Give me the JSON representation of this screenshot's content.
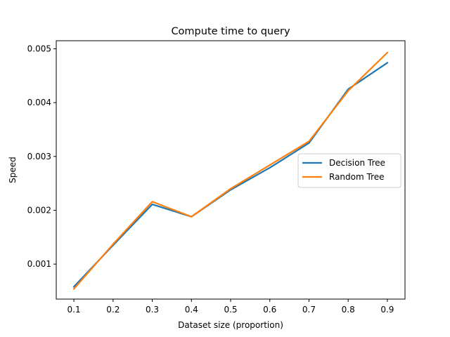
{
  "chart_data": {
    "type": "line",
    "title": "Compute time to query",
    "xlabel": "Dataset size (proportion)",
    "ylabel": "Speed",
    "x": [
      0.1,
      0.2,
      0.3,
      0.4,
      0.5,
      0.6,
      0.7,
      0.8,
      0.9
    ],
    "xlim": [
      0.055,
      0.945
    ],
    "ylim": [
      0.00035,
      0.00515
    ],
    "xticks": [
      0.1,
      0.2,
      0.3,
      0.4,
      0.5,
      0.6,
      0.7,
      0.8,
      0.9
    ],
    "yticks": [
      0.001,
      0.002,
      0.003,
      0.004,
      0.005
    ],
    "xtick_labels": [
      "0.1",
      "0.2",
      "0.3",
      "0.4",
      "0.5",
      "0.6",
      "0.7",
      "0.8",
      "0.9"
    ],
    "ytick_labels": [
      "0.001",
      "0.002",
      "0.003",
      "0.004",
      "0.005"
    ],
    "grid": false,
    "legend_position": "center-right",
    "series": [
      {
        "name": "Decision Tree",
        "color": "#1f77b4",
        "values": [
          0.00058,
          0.00135,
          0.00211,
          0.00188,
          0.00238,
          0.00279,
          0.00325,
          0.00425,
          0.00474
        ]
      },
      {
        "name": "Random Tree",
        "color": "#ff7f0e",
        "values": [
          0.00054,
          0.00137,
          0.00216,
          0.00188,
          0.0024,
          0.00284,
          0.00328,
          0.00422,
          0.00493
        ]
      }
    ]
  }
}
